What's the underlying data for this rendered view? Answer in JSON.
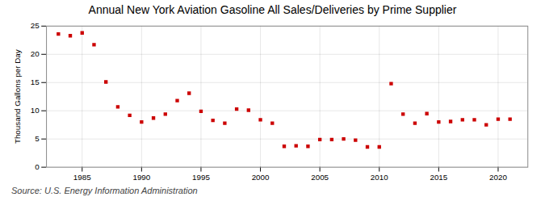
{
  "chart_data": {
    "type": "scatter",
    "title": "Annual New York Aviation Gasoline All Sales/Deliveries by Prime Supplier",
    "ylabel": "Thousand Gallons per Day",
    "annotations": [
      "Source: U.S. Energy Information Administration"
    ],
    "x": [
      1983,
      1984,
      1985,
      1986,
      1987,
      1988,
      1989,
      1990,
      1991,
      1992,
      1993,
      1994,
      1995,
      1996,
      1997,
      1998,
      1999,
      2000,
      2001,
      2002,
      2003,
      2004,
      2005,
      2006,
      2007,
      2008,
      2009,
      2010,
      2011,
      2012,
      2013,
      2014,
      2015,
      2016,
      2017,
      2018,
      2019,
      2020,
      2021
    ],
    "values": [
      23.6,
      23.3,
      23.8,
      21.7,
      15.1,
      10.7,
      9.2,
      8.0,
      8.7,
      9.4,
      11.8,
      13.1,
      9.9,
      8.3,
      7.8,
      10.3,
      10.1,
      8.4,
      7.8,
      3.7,
      3.8,
      3.7,
      4.9,
      4.9,
      5.0,
      4.8,
      3.6,
      3.6,
      14.8,
      9.4,
      7.8,
      9.5,
      8.0,
      8.1,
      8.4,
      8.4,
      7.5,
      8.5,
      8.5
    ],
    "color": "#cc0000",
    "marker": "square",
    "xlim": [
      1982,
      2022.5
    ],
    "xticks": [
      1985,
      1990,
      1995,
      2000,
      2005,
      2010,
      2015,
      2020
    ],
    "ylim": [
      0,
      25
    ],
    "yticks": [
      0,
      5,
      10,
      15,
      20,
      25
    ],
    "grid": true
  }
}
